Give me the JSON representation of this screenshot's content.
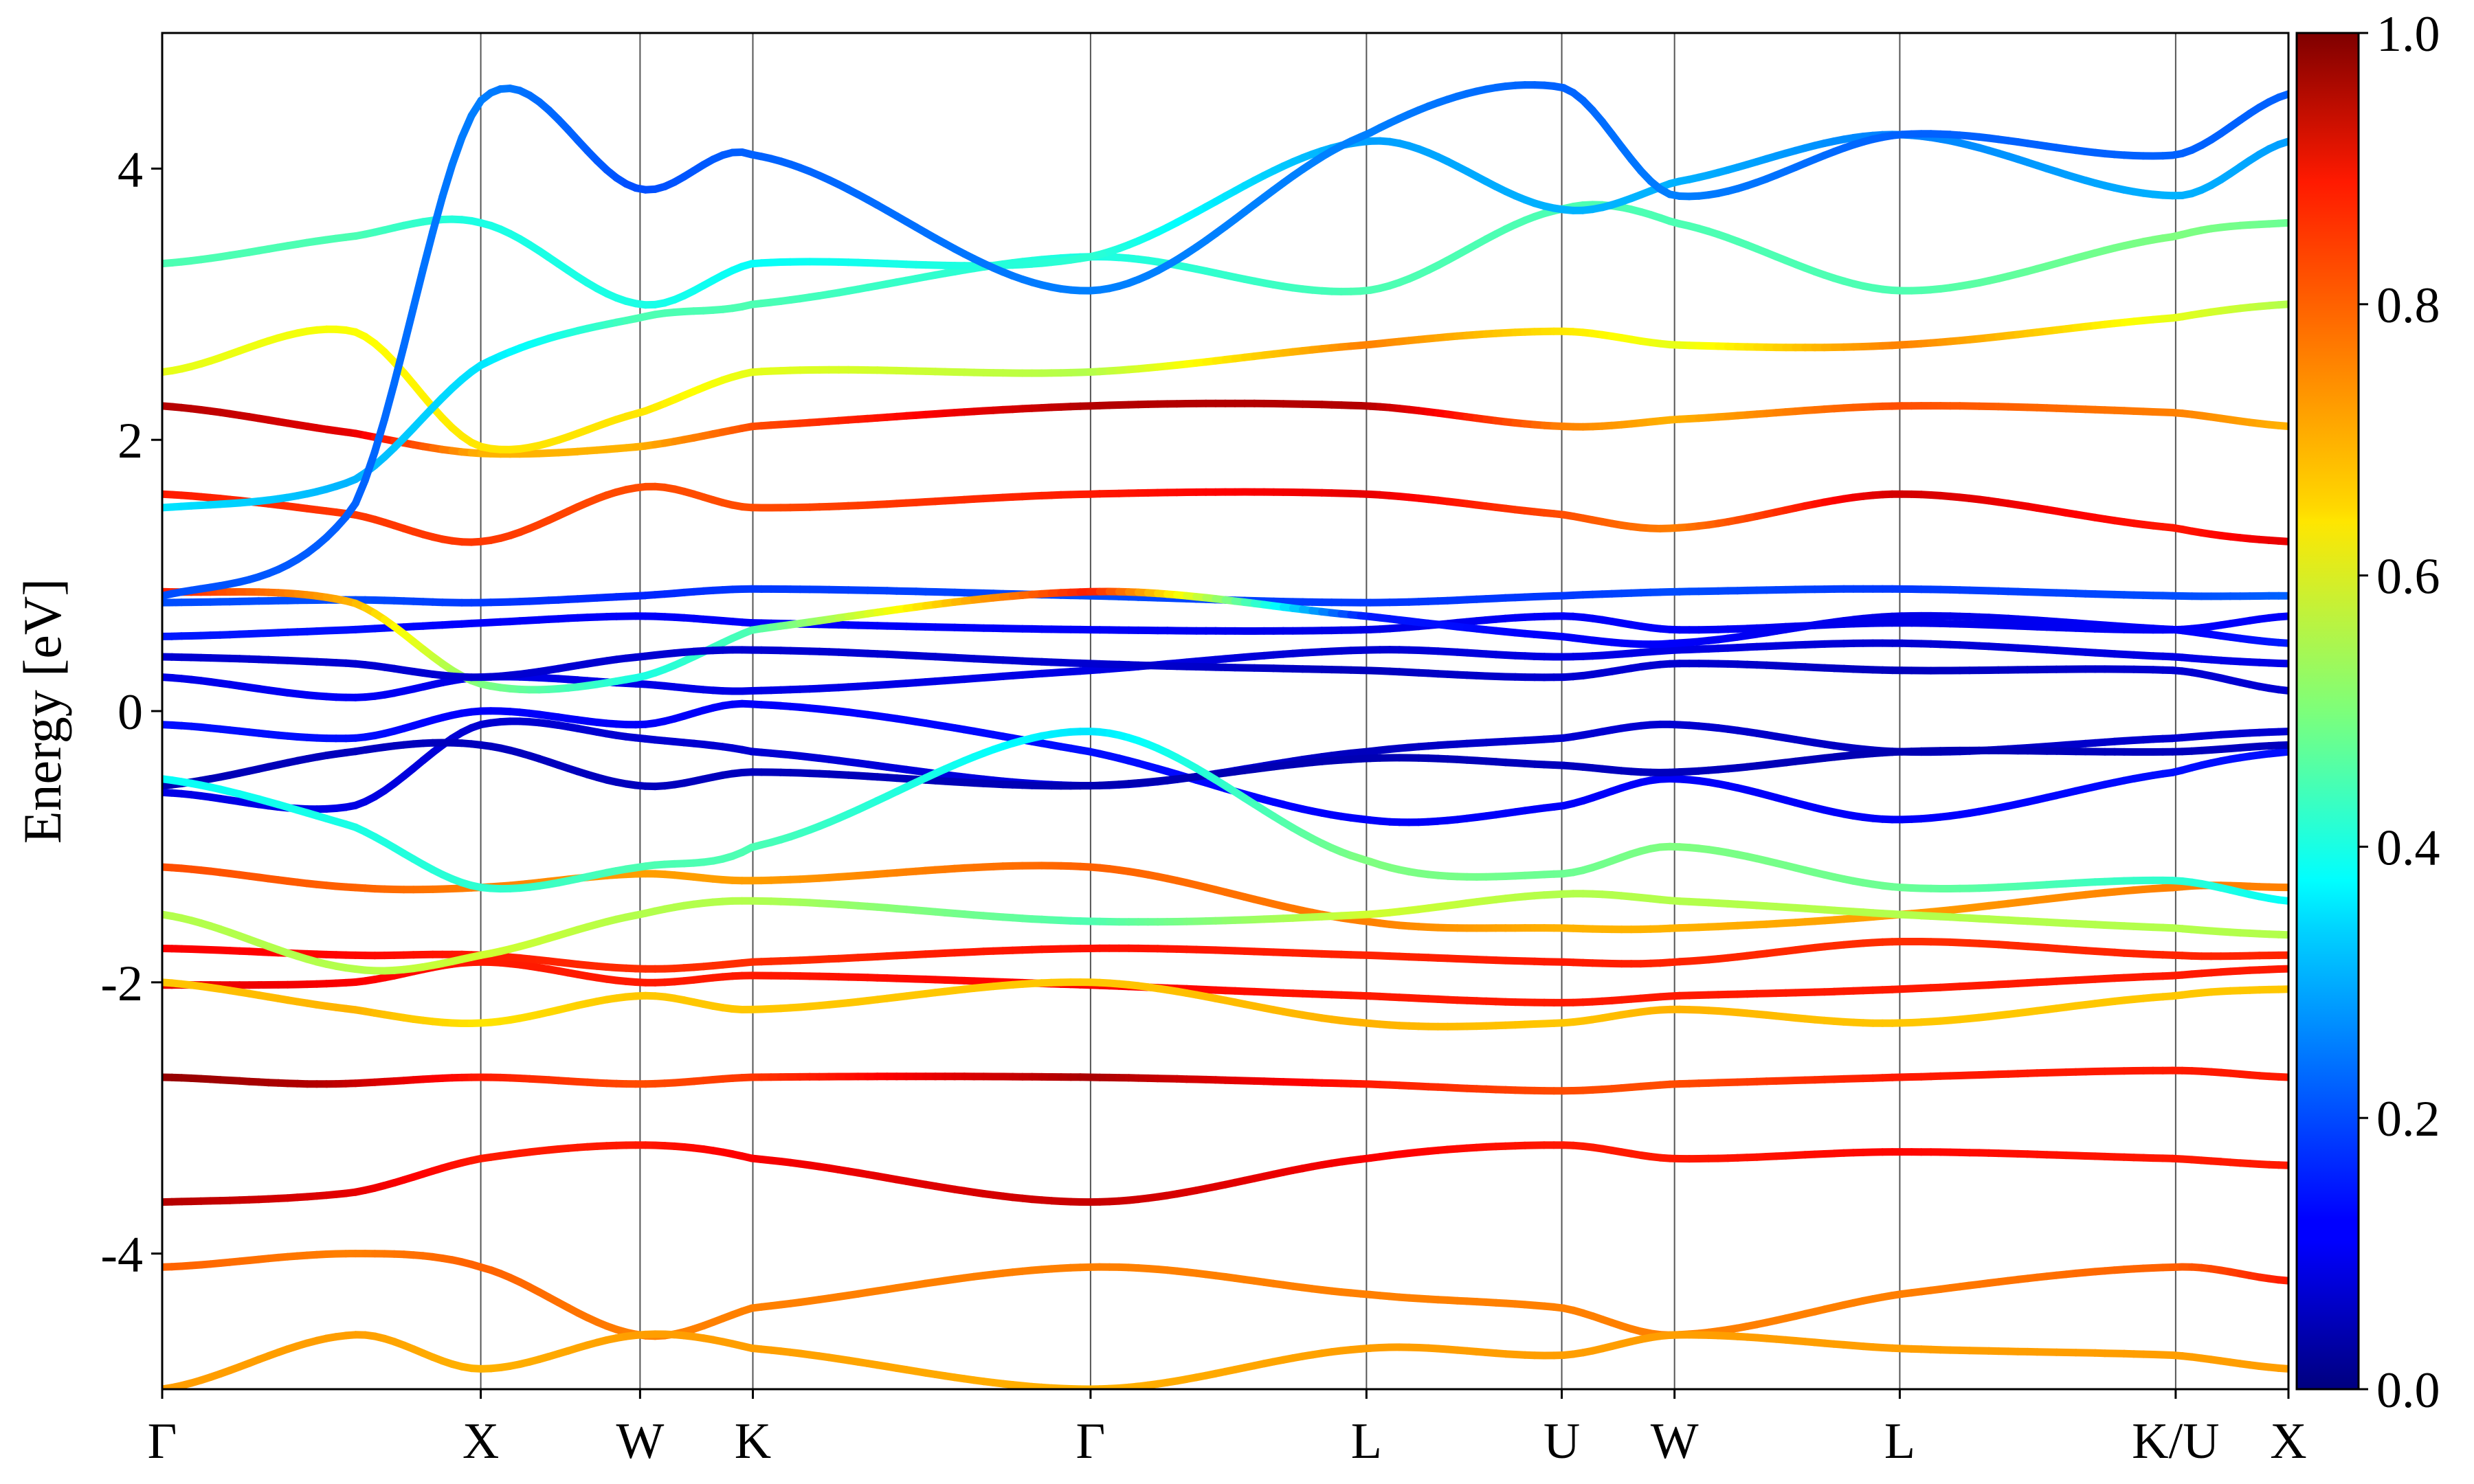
{
  "chart_data": {
    "type": "line",
    "title": "",
    "xlabel": "",
    "ylabel": "Energy [eV]",
    "ylim": [
      -5,
      5
    ],
    "yticks": [
      4,
      2,
      0,
      -2,
      -4
    ],
    "ytick_labels": [
      "4",
      "2",
      "0",
      "-2",
      "-4"
    ],
    "kpath": [
      {
        "label": "Γ",
        "k": 0.0
      },
      {
        "label": "X",
        "k": 1.0
      },
      {
        "label": "W",
        "k": 1.5
      },
      {
        "label": "K",
        "k": 1.854
      },
      {
        "label": "Γ",
        "k": 2.914
      },
      {
        "label": "L",
        "k": 3.78
      },
      {
        "label": "U",
        "k": 4.393
      },
      {
        "label": "W",
        "k": 4.747
      },
      {
        "label": "L",
        "k": 5.454
      },
      {
        "label": "K/U",
        "k": 6.32
      },
      {
        "label": "X",
        "k": 6.674
      }
    ],
    "grid": "vertical lines at high-symmetry points",
    "colormap": "jet",
    "colorbar": {
      "range": [
        0.0,
        1.0
      ],
      "ticks": [
        0.0,
        0.2,
        0.4,
        0.6,
        0.8,
        1.0
      ],
      "tick_labels": [
        "0.0",
        "0.2",
        "0.4",
        "0.6",
        "0.8",
        "1.0"
      ]
    },
    "series": [
      {
        "k": [
          0,
          0.6,
          1.0,
          1.5,
          1.854,
          2.914,
          3.78,
          4.393,
          4.747,
          5.454,
          6.32,
          6.674
        ],
        "energy": [
          -3.62,
          -3.55,
          -3.3,
          -3.2,
          -3.3,
          -3.62,
          -3.3,
          -3.2,
          -3.3,
          -3.25,
          -3.3,
          -3.35
        ],
        "weight": [
          0.95,
          0.9,
          0.85,
          0.85,
          0.88,
          0.93,
          0.88,
          0.85,
          0.85,
          0.87,
          0.85,
          0.85
        ]
      },
      {
        "k": [
          0,
          0.5,
          1.0,
          1.5,
          1.854,
          2.914,
          3.78,
          4.393,
          4.747,
          5.454,
          6.32,
          6.674
        ],
        "energy": [
          -2.7,
          -2.75,
          -2.7,
          -2.75,
          -2.7,
          -2.7,
          -2.75,
          -2.8,
          -2.75,
          -2.7,
          -2.65,
          -2.7
        ],
        "weight": [
          0.98,
          0.95,
          0.85,
          0.8,
          0.82,
          0.96,
          0.85,
          0.8,
          0.8,
          0.85,
          0.85,
          0.85
        ]
      },
      {
        "k": [
          0,
          0.6,
          1.0,
          1.5,
          1.854,
          2.914,
          3.78,
          4.393,
          4.747,
          5.454,
          6.32,
          6.674
        ],
        "energy": [
          -2.02,
          -2.0,
          -1.85,
          -2.0,
          -1.95,
          -2.02,
          -2.1,
          -2.15,
          -2.1,
          -2.05,
          -1.95,
          -1.9
        ],
        "weight": [
          0.9,
          0.88,
          0.85,
          0.85,
          0.85,
          0.88,
          0.85,
          0.85,
          0.85,
          0.85,
          0.85,
          0.85
        ]
      },
      {
        "k": [
          0,
          0.6,
          1.0,
          1.5,
          1.854,
          2.914,
          3.78,
          4.393,
          4.747,
          5.454,
          6.32,
          6.674
        ],
        "energy": [
          -1.75,
          -1.8,
          -1.8,
          -1.9,
          -1.85,
          -1.75,
          -1.8,
          -1.85,
          -1.85,
          -1.7,
          -1.8,
          -1.8
        ],
        "weight": [
          0.88,
          0.87,
          0.85,
          0.83,
          0.83,
          0.86,
          0.84,
          0.85,
          0.84,
          0.83,
          0.84,
          0.84
        ]
      },
      {
        "k": [
          0,
          0.6,
          1.0,
          1.5,
          1.854,
          2.914,
          3.78,
          4.393,
          4.747,
          5.454,
          6.32,
          6.674
        ],
        "energy": [
          -1.15,
          -1.3,
          -1.3,
          -1.2,
          -1.25,
          -1.15,
          -1.55,
          -1.6,
          -1.6,
          -1.5,
          -1.3,
          -1.3
        ],
        "weight": [
          0.8,
          0.78,
          0.75,
          0.72,
          0.72,
          0.78,
          0.75,
          0.7,
          0.7,
          0.72,
          0.75,
          0.75
        ]
      },
      {
        "k": [
          0,
          0.6,
          1.0,
          1.5,
          1.854,
          2.914,
          3.78,
          4.393,
          4.747,
          5.454,
          6.32,
          6.674
        ],
        "energy": [
          -4.1,
          -4.0,
          -4.1,
          -4.6,
          -4.4,
          -4.1,
          -4.3,
          -4.4,
          -4.6,
          -4.3,
          -4.1,
          -4.2
        ],
        "weight": [
          0.78,
          0.75,
          0.78,
          0.75,
          0.75,
          0.75,
          0.75,
          0.75,
          0.75,
          0.75,
          0.78,
          0.85
        ]
      },
      {
        "k": [
          0,
          0.6,
          1.0,
          1.5,
          1.854,
          2.914,
          3.78,
          4.393,
          4.747,
          5.454,
          6.32,
          6.674
        ],
        "energy": [
          -0.6,
          -0.7,
          -0.1,
          -0.2,
          -0.3,
          -0.55,
          -0.3,
          -0.2,
          -0.1,
          -0.3,
          -0.2,
          -0.15
        ],
        "weight": [
          0.1,
          0.1,
          0.08,
          0.08,
          0.08,
          0.1,
          0.06,
          0.08,
          0.08,
          0.06,
          0.08,
          0.08
        ]
      },
      {
        "k": [
          0,
          0.6,
          1.0,
          1.5,
          1.854,
          2.914,
          3.78,
          4.393,
          4.747,
          5.454,
          6.32,
          6.674
        ],
        "energy": [
          0.25,
          0.1,
          0.25,
          0.2,
          0.15,
          0.3,
          0.45,
          0.4,
          0.45,
          0.5,
          0.4,
          0.35
        ],
        "weight": [
          0.1,
          0.12,
          0.1,
          0.1,
          0.1,
          0.1,
          0.08,
          0.1,
          0.1,
          0.08,
          0.1,
          0.1
        ]
      },
      {
        "k": [
          0,
          0.6,
          1.0,
          1.5,
          1.854,
          2.914,
          3.78,
          4.393,
          4.747,
          5.454,
          6.32,
          6.674
        ],
        "energy": [
          0.55,
          0.6,
          0.65,
          0.7,
          0.65,
          0.6,
          0.6,
          0.7,
          0.6,
          0.65,
          0.6,
          0.7
        ],
        "weight": [
          0.15,
          0.14,
          0.12,
          0.12,
          0.12,
          0.12,
          0.1,
          0.12,
          0.12,
          0.1,
          0.12,
          0.12
        ]
      },
      {
        "k": [
          0,
          0.6,
          1.0,
          1.5,
          1.854,
          2.914,
          3.78,
          4.393,
          4.747,
          5.454,
          6.32,
          6.674
        ],
        "energy": [
          0.8,
          0.82,
          0.8,
          0.85,
          0.9,
          0.85,
          0.8,
          0.85,
          0.88,
          0.9,
          0.85,
          0.85
        ],
        "weight": [
          0.2,
          0.2,
          0.18,
          0.16,
          0.18,
          0.2,
          0.18,
          0.18,
          0.2,
          0.18,
          0.2,
          0.22
        ]
      },
      {
        "k": [
          0,
          0.6,
          1.0,
          1.5,
          1.854,
          2.914,
          3.78,
          4.393,
          4.747,
          5.454,
          6.32,
          6.674
        ],
        "energy": [
          -0.1,
          -0.2,
          0.0,
          -0.1,
          0.05,
          -0.3,
          -0.8,
          -0.7,
          -0.5,
          -0.8,
          -0.45,
          -0.3
        ],
        "weight": [
          0.14,
          0.14,
          0.12,
          0.12,
          0.12,
          0.14,
          0.12,
          0.12,
          0.12,
          0.12,
          0.14,
          0.14
        ]
      },
      {
        "k": [
          0,
          0.6,
          1.0,
          1.5,
          1.854,
          2.914,
          3.78,
          4.393,
          4.747,
          5.454,
          6.32,
          6.674
        ],
        "energy": [
          0.88,
          0.8,
          0.2,
          0.25,
          0.6,
          0.88,
          0.7,
          0.55,
          0.5,
          0.7,
          0.6,
          0.5
        ],
        "weight": [
          0.85,
          0.7,
          0.5,
          0.4,
          0.45,
          0.85,
          0.15,
          0.12,
          0.12,
          0.1,
          0.12,
          0.15
        ]
      },
      {
        "k": [
          0,
          0.6,
          1.0,
          1.5,
          1.854,
          2.914,
          3.78,
          4.393,
          4.747,
          5.454,
          6.32,
          6.674
        ],
        "energy": [
          1.6,
          1.45,
          1.25,
          1.65,
          1.5,
          1.6,
          1.6,
          1.45,
          1.35,
          1.6,
          1.35,
          1.25
        ],
        "weight": [
          0.85,
          0.82,
          0.82,
          0.8,
          0.8,
          0.85,
          0.9,
          0.8,
          0.75,
          0.92,
          0.85,
          0.9
        ]
      },
      {
        "k": [
          0,
          0.6,
          1.0,
          1.5,
          1.854,
          2.914,
          3.78,
          4.393,
          4.747,
          5.454,
          6.32,
          6.674
        ],
        "energy": [
          2.25,
          2.05,
          1.9,
          1.95,
          2.1,
          2.25,
          2.25,
          2.1,
          2.15,
          2.25,
          2.2,
          2.1
        ],
        "weight": [
          0.95,
          0.9,
          0.7,
          0.7,
          0.8,
          0.95,
          0.95,
          0.75,
          0.7,
          0.8,
          0.75,
          0.7
        ]
      },
      {
        "k": [
          0,
          0.6,
          1.0,
          1.5,
          1.854,
          2.914,
          3.78,
          4.393,
          4.747,
          5.454,
          6.32,
          6.674
        ],
        "energy": [
          2.5,
          2.8,
          1.95,
          2.2,
          2.5,
          2.5,
          2.7,
          2.8,
          2.7,
          2.7,
          2.9,
          3.0
        ],
        "weight": [
          0.6,
          0.62,
          0.65,
          0.65,
          0.6,
          0.55,
          0.75,
          0.65,
          0.6,
          0.75,
          0.6,
          0.55
        ]
      },
      {
        "k": [
          0,
          0.6,
          1.0,
          1.5,
          1.854,
          2.914,
          3.78,
          4.393,
          4.747,
          5.454,
          6.32,
          6.674
        ],
        "energy": [
          1.5,
          1.7,
          2.55,
          2.9,
          3.0,
          3.35,
          3.1,
          3.7,
          3.6,
          3.1,
          3.5,
          3.6
        ],
        "weight": [
          0.35,
          0.3,
          0.35,
          0.45,
          0.45,
          0.4,
          0.45,
          0.45,
          0.45,
          0.45,
          0.5,
          0.48
        ]
      },
      {
        "k": [
          0,
          0.6,
          1.0,
          1.5,
          1.854,
          2.914,
          3.78,
          4.393,
          4.747,
          5.454,
          6.32,
          6.674
        ],
        "energy": [
          3.3,
          3.5,
          3.6,
          3.0,
          3.3,
          3.35,
          4.2,
          3.7,
          3.9,
          4.25,
          3.8,
          4.2
        ],
        "weight": [
          0.45,
          0.45,
          0.4,
          0.4,
          0.38,
          0.42,
          0.28,
          0.3,
          0.3,
          0.25,
          0.3,
          0.28
        ]
      },
      {
        "k": [
          0,
          0.6,
          1.0,
          1.5,
          1.854,
          2.914,
          3.78,
          4.393,
          4.747,
          5.454,
          6.32,
          6.674
        ],
        "energy": [
          0.85,
          1.5,
          4.5,
          3.85,
          4.1,
          3.1,
          4.25,
          4.6,
          3.8,
          4.25,
          4.1,
          4.55
        ],
        "weight": [
          0.2,
          0.22,
          0.25,
          0.2,
          0.22,
          0.25,
          0.25,
          0.22,
          0.25,
          0.22,
          0.22,
          0.22
        ]
      },
      {
        "k": [
          0,
          0.6,
          1.0,
          1.5,
          1.854,
          2.914,
          3.78,
          4.393,
          4.747,
          5.454,
          6.32,
          6.674
        ],
        "energy": [
          -2.0,
          -2.2,
          -2.3,
          -2.1,
          -2.2,
          -2.0,
          -2.3,
          -2.3,
          -2.2,
          -2.3,
          -2.1,
          -2.05
        ],
        "weight": [
          0.68,
          0.7,
          0.65,
          0.68,
          0.68,
          0.68,
          0.7,
          0.68,
          0.7,
          0.68,
          0.68,
          0.68
        ]
      },
      {
        "k": [
          0,
          0.6,
          1.0,
          1.5,
          1.854,
          2.914,
          3.78,
          4.393,
          4.747,
          5.454,
          6.32,
          6.674
        ],
        "energy": [
          -1.5,
          -1.9,
          -1.8,
          -1.5,
          -1.4,
          -1.55,
          -1.5,
          -1.35,
          -1.4,
          -1.5,
          -1.6,
          -1.65
        ],
        "weight": [
          0.55,
          0.55,
          0.58,
          0.55,
          0.55,
          0.45,
          0.58,
          0.55,
          0.55,
          0.55,
          0.55,
          0.55
        ]
      },
      {
        "k": [
          0,
          0.6,
          1.0,
          1.5,
          1.854,
          2.914,
          3.78,
          4.393,
          4.747,
          5.454,
          6.32,
          6.674
        ],
        "energy": [
          -5.0,
          -4.6,
          -4.85,
          -4.6,
          -4.7,
          -5.0,
          -4.7,
          -4.75,
          -4.6,
          -4.7,
          -4.75,
          -4.85
        ],
        "weight": [
          0.72,
          0.72,
          0.7,
          0.72,
          0.72,
          0.7,
          0.72,
          0.72,
          0.72,
          0.72,
          0.72,
          0.72
        ]
      },
      {
        "k": [
          0,
          0.6,
          1.0,
          1.5,
          1.854,
          2.914,
          3.78,
          4.393,
          4.747,
          5.454,
          6.32,
          6.674
        ],
        "energy": [
          -0.55,
          -0.3,
          -0.25,
          -0.55,
          -0.45,
          -0.55,
          -0.35,
          -0.4,
          -0.45,
          -0.3,
          -0.3,
          -0.25
        ],
        "weight": [
          0.05,
          0.06,
          0.06,
          0.06,
          0.06,
          0.05,
          0.05,
          0.06,
          0.06,
          0.05,
          0.06,
          0.06
        ]
      },
      {
        "k": [
          0,
          0.6,
          1.0,
          1.5,
          1.854,
          2.914,
          3.78,
          4.393,
          4.747,
          5.454,
          6.32,
          6.674
        ],
        "energy": [
          0.4,
          0.35,
          0.25,
          0.4,
          0.45,
          0.35,
          0.3,
          0.25,
          0.35,
          0.3,
          0.3,
          0.15
        ],
        "weight": [
          0.08,
          0.08,
          0.08,
          0.08,
          0.08,
          0.08,
          0.06,
          0.08,
          0.08,
          0.06,
          0.08,
          0.08
        ]
      },
      {
        "k": [
          0,
          0.6,
          1.0,
          1.5,
          1.854,
          2.914,
          3.78,
          4.393,
          4.747,
          5.454,
          6.32,
          6.674
        ],
        "energy": [
          -0.5,
          -0.85,
          -1.3,
          -1.15,
          -1.0,
          -0.15,
          -1.1,
          -1.2,
          -1.0,
          -1.3,
          -1.25,
          -1.4
        ],
        "weight": [
          0.38,
          0.4,
          0.42,
          0.45,
          0.45,
          0.35,
          0.5,
          0.48,
          0.5,
          0.48,
          0.42,
          0.38
        ]
      }
    ]
  }
}
